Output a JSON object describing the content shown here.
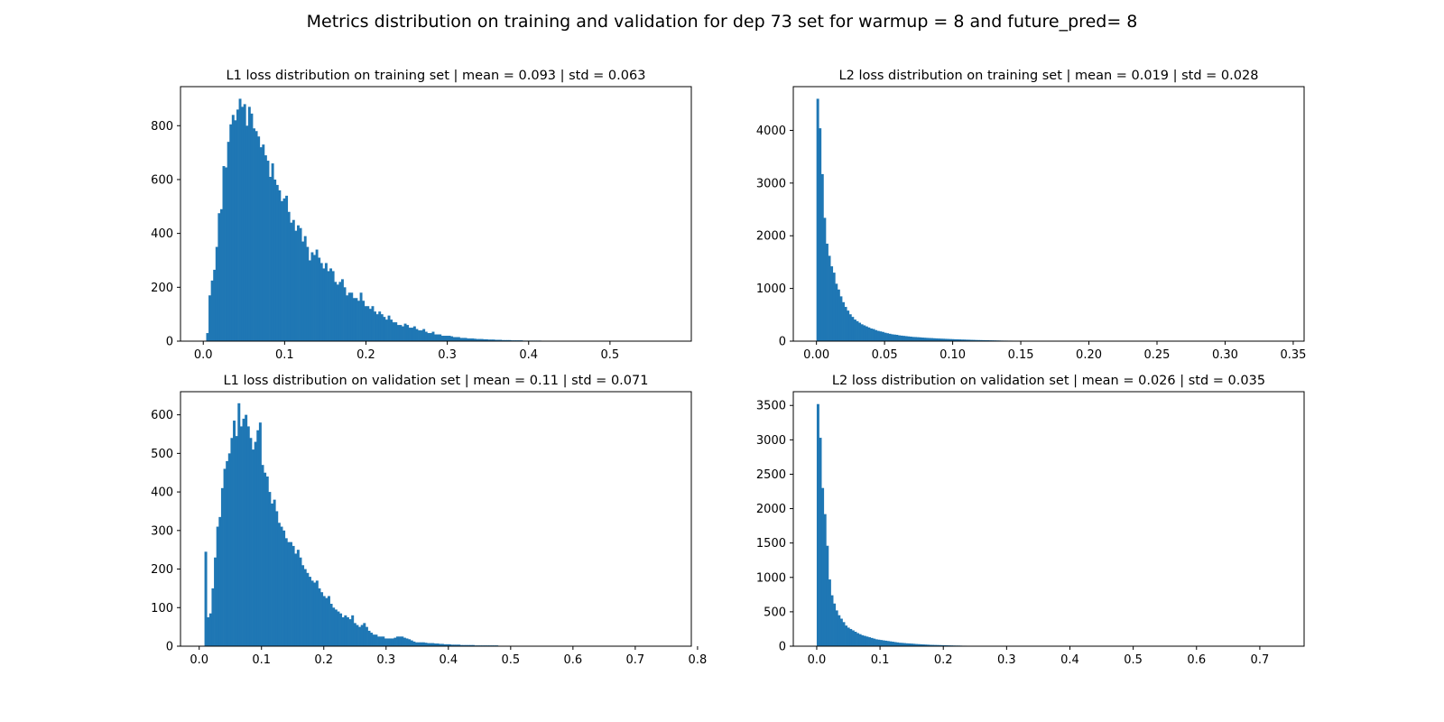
{
  "figure": {
    "suptitle": "Metrics distribution on training and validation for dep 73 set for warmup = 8 and future_pred= 8"
  },
  "chart_data": [
    {
      "type": "bar",
      "title": "L1 loss distribution on training set | mean = 0.093 | std = 0.063",
      "color": "#1f77b4",
      "xlim": [
        -0.028,
        0.6
      ],
      "ylim": [
        0,
        945
      ],
      "xticks": [
        0.0,
        0.1,
        0.2,
        0.3,
        0.4,
        0.5
      ],
      "xtick_labels": [
        "0.0",
        "0.1",
        "0.2",
        "0.3",
        "0.4",
        "0.5"
      ],
      "yticks": [
        0,
        200,
        400,
        600,
        800
      ],
      "ytick_labels": [
        "0",
        "200",
        "400",
        "600",
        "800"
      ],
      "bins": {
        "start": 0.0036,
        "width": 0.00286
      },
      "values": [
        30,
        170,
        225,
        265,
        350,
        475,
        490,
        650,
        645,
        740,
        805,
        840,
        820,
        860,
        900,
        870,
        880,
        800,
        870,
        845,
        790,
        780,
        760,
        720,
        730,
        690,
        670,
        610,
        660,
        600,
        580,
        560,
        520,
        530,
        540,
        480,
        440,
        450,
        410,
        430,
        420,
        370,
        390,
        350,
        300,
        330,
        320,
        340,
        310,
        290,
        270,
        290,
        260,
        270,
        260,
        220,
        210,
        220,
        230,
        200,
        170,
        180,
        180,
        160,
        160,
        150,
        180,
        150,
        130,
        130,
        120,
        130,
        110,
        100,
        110,
        100,
        90,
        80,
        95,
        80,
        70,
        70,
        60,
        60,
        55,
        65,
        60,
        50,
        50,
        55,
        45,
        40,
        40,
        45,
        35,
        30,
        30,
        35,
        25,
        25,
        25,
        20,
        20,
        20,
        20,
        18,
        15,
        15,
        15,
        12,
        12,
        12,
        10,
        10,
        10,
        9,
        8,
        8,
        8,
        7,
        7,
        6,
        6,
        6,
        5,
        5,
        5,
        4,
        4,
        4,
        4,
        3,
        3,
        3,
        3,
        3,
        2,
        2,
        2,
        2,
        2,
        2,
        2,
        2,
        1,
        1,
        1,
        1,
        1,
        1,
        1,
        1,
        1,
        1,
        1,
        1,
        1,
        1,
        1,
        1,
        1,
        1,
        1,
        1,
        1,
        1,
        1,
        1,
        1,
        1,
        1,
        1,
        1,
        1,
        1,
        1,
        1,
        1,
        1,
        1,
        1,
        1,
        1,
        1,
        1,
        1,
        1,
        1,
        1,
        1,
        1,
        1,
        1,
        1,
        1,
        1
      ]
    },
    {
      "type": "bar",
      "title": "L2 loss distribution on training set | mean = 0.019 | std = 0.028",
      "color": "#1f77b4",
      "xlim": [
        -0.017,
        0.358
      ],
      "ylim": [
        0,
        4830
      ],
      "xticks": [
        0.0,
        0.05,
        0.1,
        0.15,
        0.2,
        0.25,
        0.3,
        0.35
      ],
      "xtick_labels": [
        "0.00",
        "0.05",
        "0.10",
        "0.15",
        "0.20",
        "0.25",
        "0.30",
        "0.35"
      ],
      "yticks": [
        0,
        1000,
        2000,
        3000,
        4000
      ],
      "ytick_labels": [
        "0",
        "1000",
        "2000",
        "3000",
        "4000"
      ],
      "bins": {
        "start": 0.0,
        "width": 0.00171
      },
      "values": [
        4600,
        4040,
        3170,
        2340,
        1850,
        1620,
        1420,
        1300,
        1090,
        980,
        850,
        740,
        650,
        580,
        510,
        460,
        410,
        380,
        350,
        320,
        300,
        280,
        260,
        240,
        230,
        210,
        195,
        185,
        175,
        160,
        150,
        140,
        130,
        125,
        120,
        110,
        105,
        100,
        95,
        90,
        85,
        80,
        78,
        75,
        72,
        68,
        65,
        62,
        60,
        58,
        55,
        52,
        50,
        48,
        46,
        44,
        42,
        40,
        38,
        36,
        35,
        33,
        31,
        30,
        28,
        27,
        25,
        24,
        22,
        21,
        20,
        19,
        18,
        17,
        16,
        15,
        14,
        13,
        12,
        11,
        10,
        10,
        9,
        9,
        8,
        8,
        7,
        7,
        6,
        6,
        5,
        5,
        5,
        4,
        4,
        4,
        3,
        3,
        3,
        3,
        3,
        2,
        2,
        2,
        2,
        2,
        2,
        2,
        2,
        2,
        1,
        1,
        1,
        1,
        1,
        1,
        1,
        1,
        1,
        1,
        1,
        1,
        1,
        1,
        1,
        1,
        1,
        1,
        1,
        1,
        1,
        1,
        1,
        1,
        1,
        1,
        1,
        1,
        1,
        1,
        1,
        1,
        1,
        1,
        1,
        1,
        1,
        1,
        1,
        1,
        1,
        1,
        1,
        1,
        1,
        1,
        1,
        1,
        1,
        1,
        1,
        1,
        1,
        1,
        1,
        1,
        1,
        1,
        1,
        1,
        1,
        1,
        1,
        1,
        1,
        1,
        1,
        1,
        1,
        1,
        1,
        1,
        1,
        1,
        1,
        1,
        1,
        1,
        1,
        1,
        1,
        1,
        1,
        1,
        1,
        1,
        1,
        1,
        1,
        1
      ]
    },
    {
      "type": "bar",
      "title": "L1 loss distribution on validation set | mean = 0.11 | std = 0.071",
      "color": "#1f77b4",
      "xlim": [
        -0.03,
        0.79
      ],
      "ylim": [
        0,
        660
      ],
      "xticks": [
        0.0,
        0.1,
        0.2,
        0.3,
        0.4,
        0.5,
        0.6,
        0.7,
        0.8
      ],
      "xtick_labels": [
        "0.0",
        "0.1",
        "0.2",
        "0.3",
        "0.4",
        "0.5",
        "0.6",
        "0.7",
        "0.8"
      ],
      "yticks": [
        0,
        100,
        200,
        300,
        400,
        500,
        600
      ],
      "ytick_labels": [
        "0",
        "100",
        "200",
        "300",
        "400",
        "500",
        "600"
      ],
      "bins": {
        "start": 0.0085,
        "width": 0.0038
      },
      "values": [
        245,
        75,
        85,
        150,
        230,
        310,
        335,
        410,
        460,
        480,
        500,
        540,
        585,
        545,
        630,
        570,
        590,
        600,
        570,
        540,
        510,
        530,
        560,
        580,
        470,
        450,
        440,
        400,
        370,
        380,
        350,
        320,
        310,
        300,
        280,
        270,
        270,
        260,
        240,
        250,
        230,
        210,
        200,
        190,
        180,
        170,
        165,
        170,
        150,
        140,
        130,
        125,
        130,
        110,
        100,
        95,
        90,
        85,
        75,
        80,
        75,
        70,
        80,
        60,
        55,
        50,
        55,
        60,
        50,
        40,
        35,
        30,
        30,
        25,
        25,
        25,
        20,
        20,
        20,
        20,
        22,
        25,
        25,
        25,
        22,
        20,
        18,
        15,
        12,
        10,
        10,
        10,
        10,
        9,
        8,
        8,
        8,
        7,
        7,
        6,
        6,
        5,
        5,
        5,
        4,
        4,
        4,
        4,
        3,
        3,
        3,
        3,
        3,
        3,
        2,
        2,
        2,
        2,
        2,
        2,
        2,
        2,
        2,
        2,
        1,
        1,
        1,
        1,
        1,
        1,
        1,
        1,
        1,
        1,
        1,
        1,
        1,
        1,
        1,
        1,
        1,
        1,
        1,
        1,
        1,
        1,
        1,
        1,
        1,
        1,
        1,
        1,
        1,
        1,
        1,
        1,
        1,
        1,
        1,
        1,
        1,
        1,
        1,
        1,
        1,
        1,
        1,
        1,
        1,
        1,
        1,
        1,
        1,
        1,
        1,
        1,
        1,
        1,
        1,
        1,
        1,
        1,
        1,
        1,
        1,
        1,
        1,
        1,
        1,
        1,
        1,
        1,
        1,
        1,
        1,
        1,
        1,
        1,
        1,
        1,
        1,
        1,
        1,
        1
      ]
    },
    {
      "type": "bar",
      "title": "L2 loss distribution on validation set | mean = 0.026 | std = 0.035",
      "color": "#1f77b4",
      "xlim": [
        -0.037,
        0.77
      ],
      "ylim": [
        0,
        3700
      ],
      "xticks": [
        0.0,
        0.1,
        0.2,
        0.3,
        0.4,
        0.5,
        0.6,
        0.7
      ],
      "xtick_labels": [
        "0.0",
        "0.1",
        "0.2",
        "0.3",
        "0.4",
        "0.5",
        "0.6",
        "0.7"
      ],
      "yticks": [
        0,
        500,
        1000,
        1500,
        2000,
        2500,
        3000,
        3500
      ],
      "ytick_labels": [
        "0",
        "500",
        "1000",
        "1500",
        "2000",
        "2500",
        "3000",
        "3500"
      ],
      "bins": {
        "start": 0.0,
        "width": 0.0037
      },
      "values": [
        3520,
        3030,
        2300,
        1920,
        1460,
        970,
        740,
        620,
        520,
        450,
        400,
        350,
        300,
        270,
        250,
        230,
        210,
        190,
        175,
        160,
        150,
        140,
        130,
        120,
        110,
        100,
        95,
        90,
        85,
        80,
        75,
        70,
        65,
        60,
        55,
        50,
        48,
        45,
        42,
        40,
        38,
        35,
        32,
        30,
        28,
        26,
        24,
        22,
        20,
        19,
        18,
        17,
        16,
        15,
        14,
        13,
        12,
        11,
        10,
        9,
        9,
        8,
        7,
        7,
        6,
        6,
        5,
        5,
        4,
        4,
        4,
        3,
        3,
        3,
        3,
        2,
        2,
        2,
        2,
        2,
        2,
        2,
        1,
        1,
        1,
        1,
        1,
        1,
        1,
        1,
        1,
        1,
        1,
        1,
        1,
        1,
        1,
        1,
        1,
        1,
        1,
        1,
        1,
        1,
        1,
        1,
        1,
        1,
        1,
        1,
        1,
        1,
        1,
        1,
        1,
        1,
        1,
        1,
        1,
        1,
        1,
        1,
        1,
        1,
        1,
        1,
        1,
        1,
        1,
        1,
        1,
        1,
        1,
        1,
        1,
        1,
        1,
        1,
        1,
        1,
        1,
        1,
        1,
        1,
        1,
        1,
        1,
        1,
        1,
        1,
        1,
        1,
        1,
        1,
        1,
        1,
        1,
        1,
        1,
        1,
        1,
        1,
        1,
        1,
        1,
        1,
        1,
        1,
        1,
        1,
        1,
        1,
        1,
        1,
        1,
        1,
        1,
        1,
        1,
        1,
        1,
        1,
        1,
        1,
        1,
        1,
        1,
        1,
        1,
        1,
        1,
        1,
        1,
        1,
        1,
        1,
        1,
        1,
        1,
        1,
        1
      ]
    }
  ]
}
